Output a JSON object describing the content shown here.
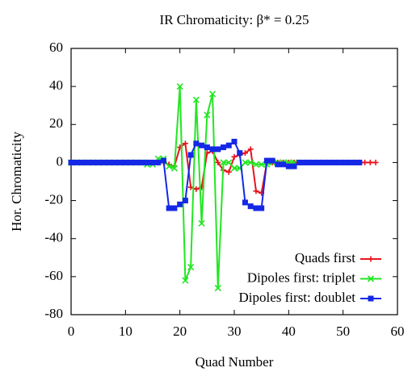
{
  "chart_data": {
    "type": "line",
    "title": "IR Chromaticity: β* = 0.25",
    "x_label": "Quad Number",
    "y_label": "Hor. Chromaticity",
    "xlim": [
      0,
      60
    ],
    "xticks": [
      0,
      10,
      20,
      30,
      40,
      50,
      60
    ],
    "ylim": [
      -80,
      60
    ],
    "yticks": [
      -80,
      -60,
      -40,
      -20,
      0,
      20,
      40,
      60
    ],
    "legend": "lower-right",
    "x": [
      0,
      1,
      2,
      3,
      4,
      5,
      6,
      7,
      8,
      9,
      10,
      11,
      12,
      13,
      14,
      15,
      16,
      17,
      18,
      19,
      20,
      21,
      22,
      23,
      24,
      25,
      26,
      27,
      28,
      29,
      30,
      31,
      32,
      33,
      34,
      35,
      36,
      37,
      38,
      39,
      40,
      41,
      42,
      43,
      44,
      45,
      46,
      47,
      48,
      49,
      50,
      51,
      52,
      53,
      54,
      55,
      56
    ],
    "series": [
      {
        "name": "Quads first",
        "color": "#e8141c",
        "marker": "plus",
        "values": [
          0,
          0,
          0,
          0,
          0,
          0,
          0,
          0,
          0,
          0,
          0,
          0,
          0,
          0,
          0,
          0,
          0,
          0,
          -1,
          -2,
          8,
          10,
          -13,
          -14,
          -13,
          5,
          6,
          0,
          -4,
          -5,
          3,
          4,
          5,
          7,
          -15,
          -16,
          0,
          0,
          0,
          0,
          0,
          0,
          0,
          0,
          0,
          0,
          0,
          0,
          0,
          0,
          0,
          0,
          0,
          0,
          0,
          0,
          0
        ]
      },
      {
        "name": "Dipoles first: triplet",
        "color": "#22e622",
        "marker": "x",
        "values": [
          0,
          0,
          0,
          0,
          0,
          0,
          0,
          0,
          0,
          0,
          0,
          0,
          0,
          0,
          -1,
          -1,
          2,
          2,
          -2,
          -3,
          40,
          -62,
          -55,
          33,
          -32,
          25,
          36,
          -66,
          0,
          0,
          -3,
          -3,
          0,
          0,
          -1,
          -1,
          -1,
          0,
          0,
          0,
          0,
          0,
          null,
          null,
          null,
          null,
          null,
          null,
          null,
          null,
          null,
          null,
          null,
          null,
          null,
          null,
          null
        ]
      },
      {
        "name": "Dipoles first: doublet",
        "color": "#1428e6",
        "marker": "square",
        "values": [
          0,
          0,
          0,
          0,
          0,
          0,
          0,
          0,
          0,
          0,
          0,
          0,
          0,
          0,
          0,
          0,
          0,
          1,
          -24,
          -24,
          -22,
          -20,
          4,
          10,
          9,
          8,
          7,
          7,
          8,
          9,
          11,
          5,
          -21,
          -23,
          -24,
          -24,
          1,
          1,
          -1,
          -1,
          -2,
          -2,
          0,
          0,
          0,
          0,
          0,
          0,
          0,
          0,
          0,
          0,
          0,
          0,
          null,
          null,
          null
        ]
      }
    ]
  }
}
